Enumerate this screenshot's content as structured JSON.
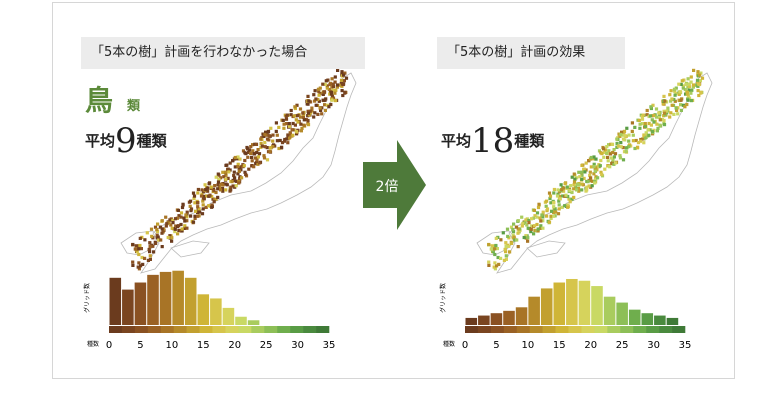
{
  "left_panel": {
    "title": "「5本の樹」計画を行わなかった場合",
    "category": "鳥",
    "category_suffix": "類",
    "avg_prefix": "平均",
    "avg_value": "9",
    "avg_suffix": "種類"
  },
  "right_panel": {
    "title": "「5本の樹」計画の効果",
    "avg_prefix": "平均",
    "avg_value": "18",
    "avg_suffix": "種類"
  },
  "arrow": {
    "label": "2倍",
    "color": "#4e7a3a"
  },
  "chart_data": [
    {
      "type": "bar",
      "ylabel": "グリッド数",
      "xlabel": "種数",
      "x_ticks": [
        "0",
        "5",
        "10",
        "15",
        "20",
        "25",
        "30",
        "35"
      ],
      "xlim": [
        0,
        35
      ],
      "bin_width": 2,
      "categories": [
        "0-2",
        "2-4",
        "4-6",
        "6-8",
        "8-10",
        "10-12",
        "12-14",
        "14-16",
        "16-18",
        "18-20",
        "20-22",
        "22-24",
        "24-26",
        "26-28",
        "28-30",
        "30-32",
        "32-34"
      ],
      "values": [
        0.8,
        0.6,
        0.72,
        0.85,
        0.9,
        0.92,
        0.8,
        0.52,
        0.45,
        0.29,
        0.14,
        0.08,
        0.0,
        0.0,
        0.0,
        0.0,
        0.0
      ],
      "bar_colors": [
        "#6b3b1e",
        "#7a4520",
        "#8a5122",
        "#9a6124",
        "#a87426",
        "#b58a2a",
        "#c2a02f",
        "#cfb537",
        "#d6c54b",
        "#d6d35c",
        "#c9d964",
        "#a9cc5e",
        "#8dbf57",
        "#6fae4d",
        "#599c45",
        "#4a8a3e",
        "#3f7a37"
      ],
      "colorbar": [
        "#6b3b1e",
        "#7a4520",
        "#8a5122",
        "#9a6124",
        "#a87426",
        "#b58a2a",
        "#c2a02f",
        "#cfb537",
        "#d6c54b",
        "#d6d35c",
        "#c9d964",
        "#a9cc5e",
        "#8dbf57",
        "#6fae4d",
        "#599c45",
        "#4a8a3e",
        "#3f7a37"
      ]
    },
    {
      "type": "bar",
      "ylabel": "グリッド数",
      "xlabel": "種数",
      "x_ticks": [
        "0",
        "5",
        "10",
        "15",
        "20",
        "25",
        "30",
        "35"
      ],
      "xlim": [
        0,
        35
      ],
      "bin_width": 2,
      "categories": [
        "0-2",
        "2-4",
        "4-6",
        "6-8",
        "8-10",
        "10-12",
        "12-14",
        "14-16",
        "16-18",
        "18-20",
        "20-22",
        "22-24",
        "24-26",
        "26-28",
        "28-30",
        "30-32",
        "32-34"
      ],
      "values": [
        0.12,
        0.16,
        0.2,
        0.24,
        0.3,
        0.48,
        0.62,
        0.72,
        0.78,
        0.75,
        0.66,
        0.48,
        0.38,
        0.26,
        0.2,
        0.16,
        0.12
      ],
      "bar_colors": [
        "#6b3b1e",
        "#7a4520",
        "#8a5122",
        "#9a6124",
        "#a87426",
        "#b58a2a",
        "#c2a02f",
        "#cfb537",
        "#d6c54b",
        "#d6d35c",
        "#c9d964",
        "#a9cc5e",
        "#8dbf57",
        "#6fae4d",
        "#599c45",
        "#4a8a3e",
        "#3f7a37"
      ],
      "colorbar": [
        "#6b3b1e",
        "#7a4520",
        "#8a5122",
        "#9a6124",
        "#a87426",
        "#b58a2a",
        "#c2a02f",
        "#cfb537",
        "#d6c54b",
        "#d6d35c",
        "#c9d964",
        "#a9cc5e",
        "#8dbf57",
        "#6fae4d",
        "#599c45",
        "#4a8a3e",
        "#3f7a37"
      ]
    }
  ]
}
